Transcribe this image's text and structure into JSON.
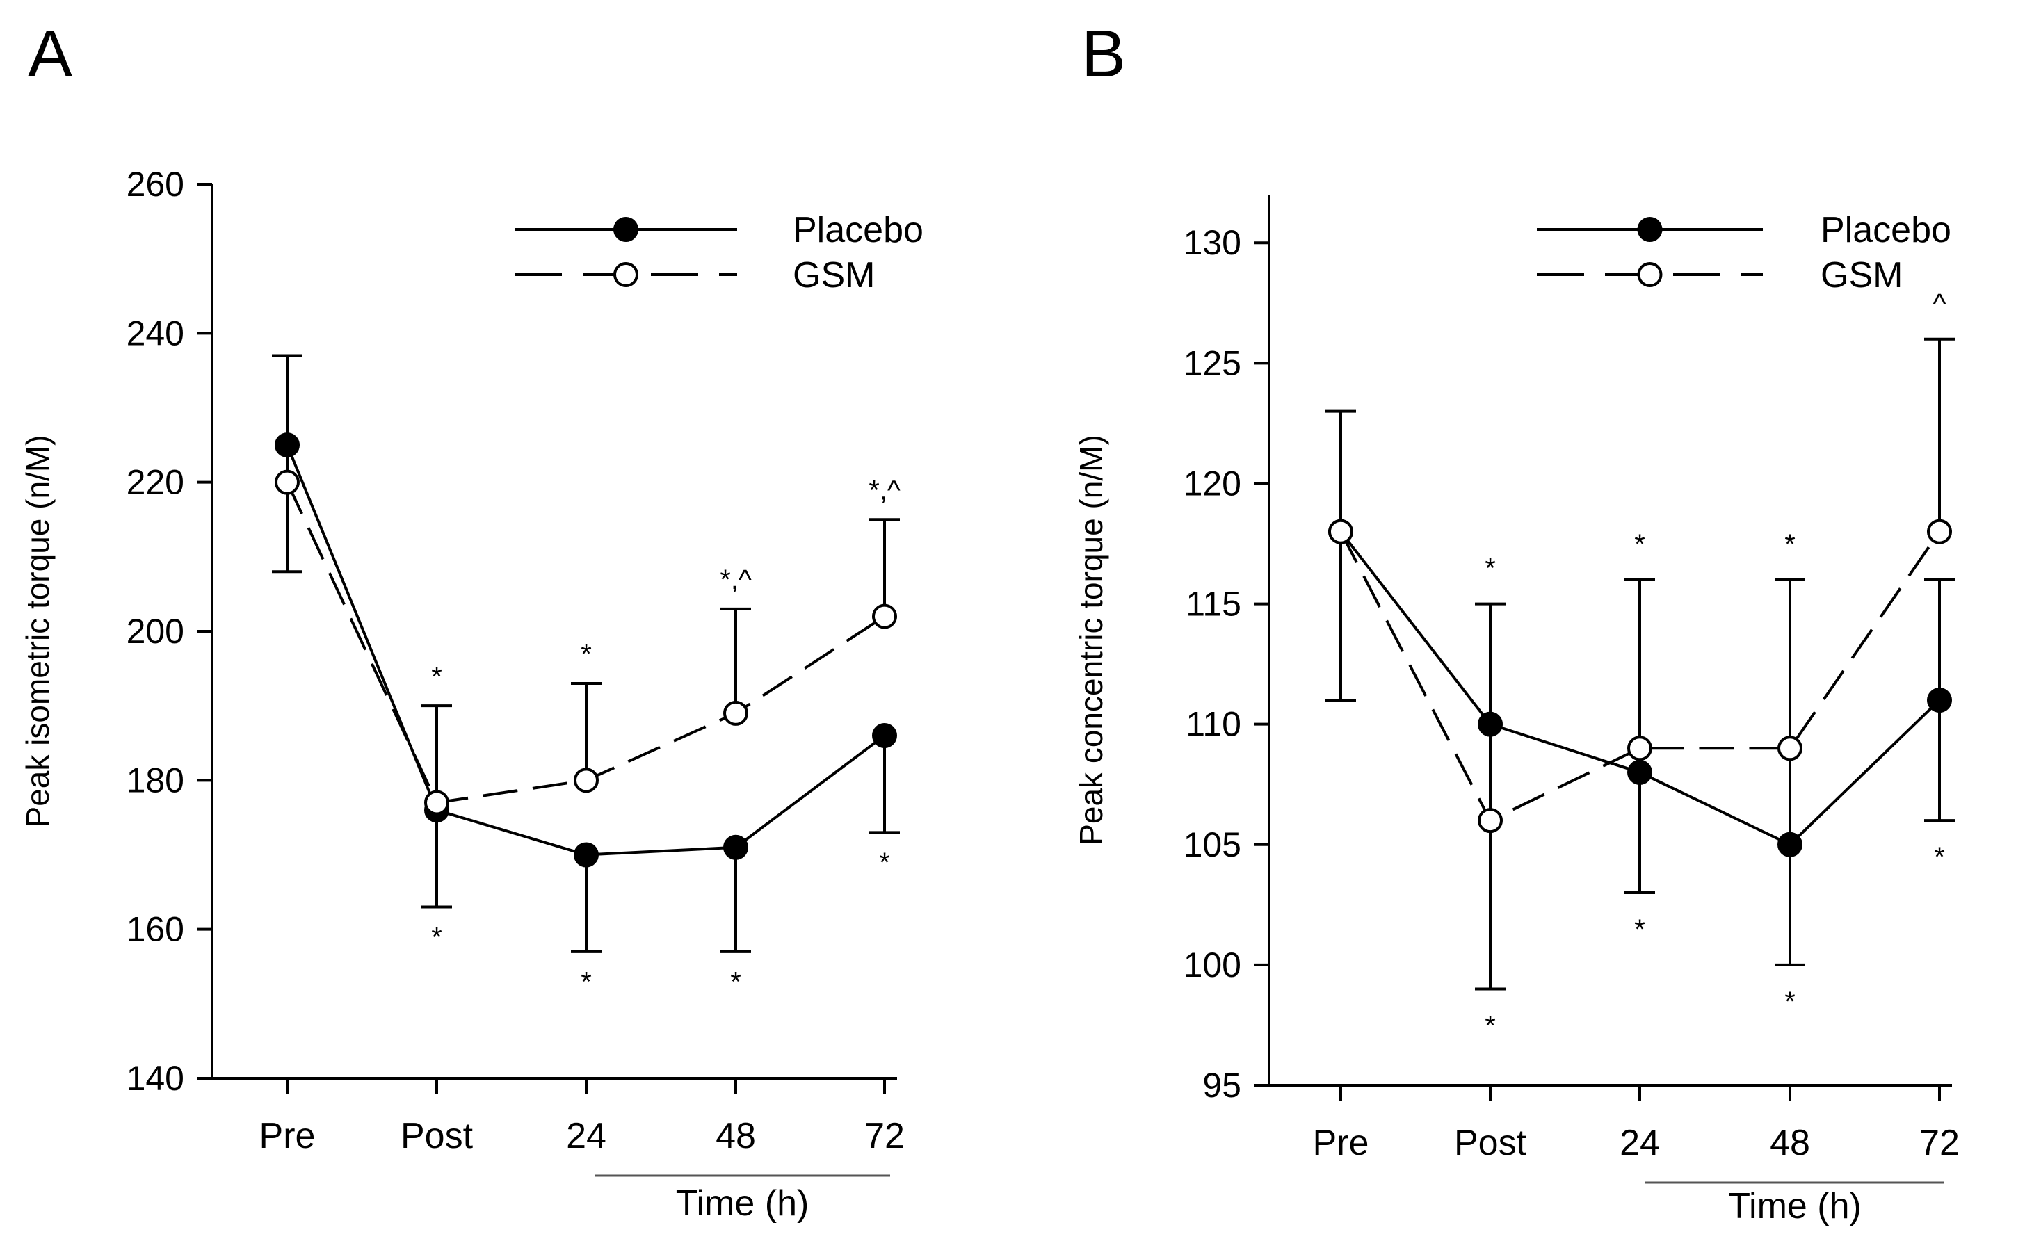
{
  "colors": {
    "ink": "#000000",
    "background": "#ffffff",
    "open_marker_fill": "#ffffff",
    "time_bar": "#555555"
  },
  "chart_data": [
    {
      "type": "line",
      "panel_label": "A",
      "title": "",
      "xlabel": "Time (h)",
      "ylabel": "Peak isometric torque (n/M)",
      "categories": [
        "Pre",
        "Post",
        "24",
        "48",
        "72"
      ],
      "ylim": [
        140,
        260
      ],
      "yticks": [
        140,
        160,
        180,
        200,
        220,
        240,
        260
      ],
      "grid": false,
      "legend_position": "top-right",
      "series": [
        {
          "name": "Placebo",
          "marker": "filled-circle",
          "line": "solid",
          "values": [
            225,
            176,
            170,
            171,
            186
          ],
          "error_lower": [
            208,
            163,
            157,
            157,
            173
          ]
        },
        {
          "name": "GSM",
          "marker": "open-circle",
          "line": "dashed",
          "values": [
            220,
            177,
            180,
            189,
            202
          ],
          "error_upper": [
            237,
            190,
            193,
            203,
            215
          ]
        }
      ],
      "annotations": [
        {
          "category": "Post",
          "value": 194,
          "text": "*"
        },
        {
          "category": "Post",
          "value": 159,
          "text": "*"
        },
        {
          "category": "24",
          "value": 197,
          "text": "*"
        },
        {
          "category": "24",
          "value": 153,
          "text": "*"
        },
        {
          "category": "48",
          "value": 207,
          "text": "*,^"
        },
        {
          "category": "48",
          "value": 153,
          "text": "*"
        },
        {
          "category": "72",
          "value": 219,
          "text": "*,^"
        },
        {
          "category": "72",
          "value": 169,
          "text": "*"
        }
      ]
    },
    {
      "type": "line",
      "panel_label": "B",
      "title": "",
      "xlabel": "Time (h)",
      "ylabel": "Peak concentric torque (n/M)",
      "categories": [
        "Pre",
        "Post",
        "24",
        "48",
        "72"
      ],
      "ylim": [
        95,
        132
      ],
      "yticks": [
        95,
        100,
        105,
        110,
        115,
        120,
        125,
        130
      ],
      "grid": false,
      "legend_position": "top-right",
      "series": [
        {
          "name": "Placebo",
          "marker": "filled-circle",
          "line": "solid",
          "values": [
            118,
            110,
            108,
            105,
            111
          ],
          "error_upper": [
            123,
            115,
            116,
            116,
            116
          ],
          "error_lower": [
            111,
            99,
            103,
            100,
            106
          ]
        },
        {
          "name": "GSM",
          "marker": "open-circle",
          "line": "dashed",
          "values": [
            118,
            106,
            109,
            109,
            118
          ],
          "error_upper": [
            null,
            null,
            null,
            null,
            126
          ]
        }
      ],
      "annotations": [
        {
          "category": "Post",
          "value": 116.5,
          "text": "*"
        },
        {
          "category": "Post",
          "value": 97.5,
          "text": "*"
        },
        {
          "category": "24",
          "value": 117.5,
          "text": "*"
        },
        {
          "category": "24",
          "value": 101.5,
          "text": "*"
        },
        {
          "category": "48",
          "value": 117.5,
          "text": "*"
        },
        {
          "category": "48",
          "value": 98.5,
          "text": "*"
        },
        {
          "category": "72",
          "value": 127.5,
          "text": "^"
        },
        {
          "category": "72",
          "value": 104.5,
          "text": "*"
        }
      ]
    }
  ]
}
